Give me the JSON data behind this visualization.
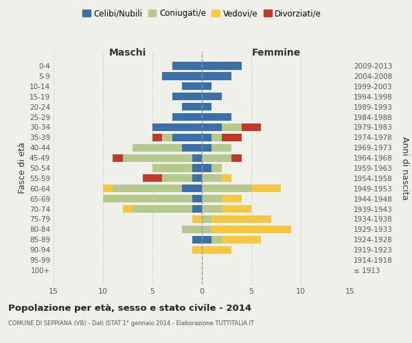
{
  "age_groups": [
    "100+",
    "95-99",
    "90-94",
    "85-89",
    "80-84",
    "75-79",
    "70-74",
    "65-69",
    "60-64",
    "55-59",
    "50-54",
    "45-49",
    "40-44",
    "35-39",
    "30-34",
    "25-29",
    "20-24",
    "15-19",
    "10-14",
    "5-9",
    "0-4"
  ],
  "birth_years": [
    "≤ 1913",
    "1914-1918",
    "1919-1923",
    "1924-1928",
    "1929-1933",
    "1934-1938",
    "1939-1943",
    "1944-1948",
    "1949-1953",
    "1954-1958",
    "1959-1963",
    "1964-1968",
    "1969-1973",
    "1974-1978",
    "1979-1983",
    "1984-1988",
    "1989-1993",
    "1994-1998",
    "1999-2003",
    "2004-2008",
    "2009-2013"
  ],
  "maschi": {
    "celibi": [
      0,
      0,
      0,
      1,
      0,
      0,
      1,
      1,
      2,
      1,
      1,
      1,
      2,
      3,
      5,
      3,
      2,
      3,
      2,
      4,
      3
    ],
    "coniugati": [
      0,
      0,
      0,
      0,
      2,
      0,
      6,
      9,
      7,
      3,
      4,
      7,
      5,
      1,
      0,
      0,
      0,
      0,
      0,
      0,
      0
    ],
    "vedovi": [
      0,
      0,
      1,
      0,
      0,
      1,
      1,
      0,
      1,
      0,
      0,
      0,
      0,
      0,
      0,
      0,
      0,
      0,
      0,
      0,
      0
    ],
    "divorziati": [
      0,
      0,
      0,
      0,
      0,
      0,
      0,
      0,
      0,
      2,
      0,
      1,
      0,
      1,
      0,
      0,
      0,
      0,
      0,
      0,
      0
    ]
  },
  "femmine": {
    "nubili": [
      0,
      0,
      0,
      1,
      0,
      0,
      0,
      0,
      0,
      0,
      1,
      0,
      1,
      1,
      2,
      3,
      1,
      2,
      1,
      3,
      4
    ],
    "coniugate": [
      0,
      0,
      0,
      1,
      1,
      1,
      2,
      2,
      5,
      2,
      1,
      3,
      2,
      1,
      2,
      0,
      0,
      0,
      0,
      0,
      0
    ],
    "vedove": [
      0,
      0,
      3,
      4,
      8,
      6,
      3,
      2,
      3,
      1,
      0,
      0,
      0,
      0,
      0,
      0,
      0,
      0,
      0,
      0,
      0
    ],
    "divorziate": [
      0,
      0,
      0,
      0,
      0,
      0,
      0,
      0,
      0,
      0,
      0,
      1,
      0,
      2,
      2,
      0,
      0,
      0,
      0,
      0,
      0
    ]
  },
  "colors": {
    "celibi": "#3a6fa8",
    "coniugati": "#b5c98e",
    "vedovi": "#f5c842",
    "divorziati": "#c0392b"
  },
  "title": "Popolazione per età, sesso e stato civile - 2014",
  "subtitle": "COMUNE DI SEPPIANA (VB) - Dati ISTAT 1° gennaio 2014 - Elaborazione TUTTITALIA.IT",
  "xlabel_left": "Maschi",
  "xlabel_right": "Femmine",
  "ylabel_left": "Fasce di età",
  "ylabel_right": "Anni di nascita",
  "xlim": 15,
  "background_color": "#f0f0eb",
  "legend_labels": [
    "Celibi/Nubili",
    "Coniugati/e",
    "Vedovi/e",
    "Divorziati/e"
  ]
}
